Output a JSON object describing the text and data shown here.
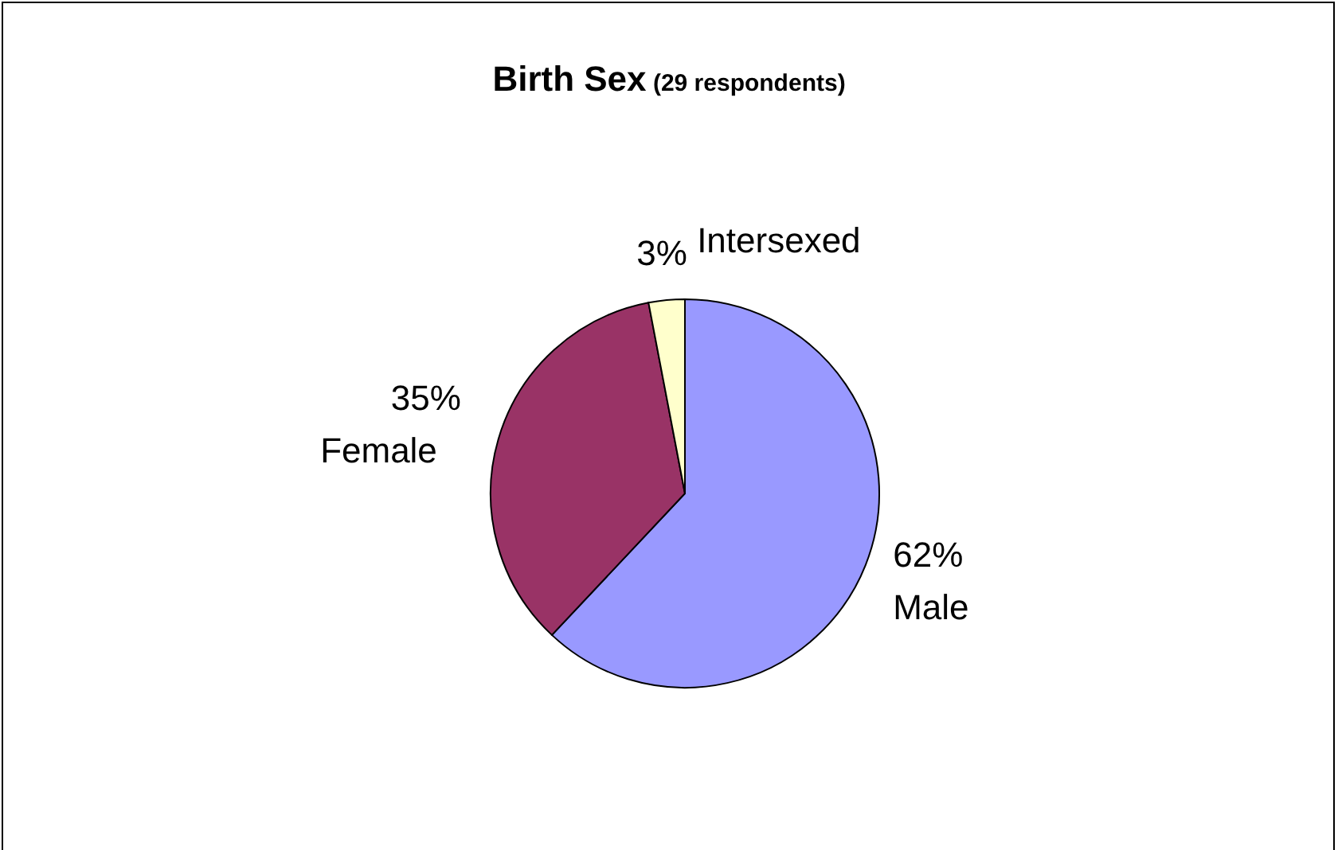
{
  "chart_data": {
    "type": "pie",
    "title": "Birth Sex",
    "subtitle": "(29 respondents)",
    "categories": [
      "Male",
      "Female",
      "Intersexed"
    ],
    "values": [
      62,
      35,
      3
    ],
    "value_labels": [
      "62%",
      "35%",
      "3%"
    ],
    "colors": [
      "#9999ff",
      "#993366",
      "#ffffcc"
    ]
  }
}
